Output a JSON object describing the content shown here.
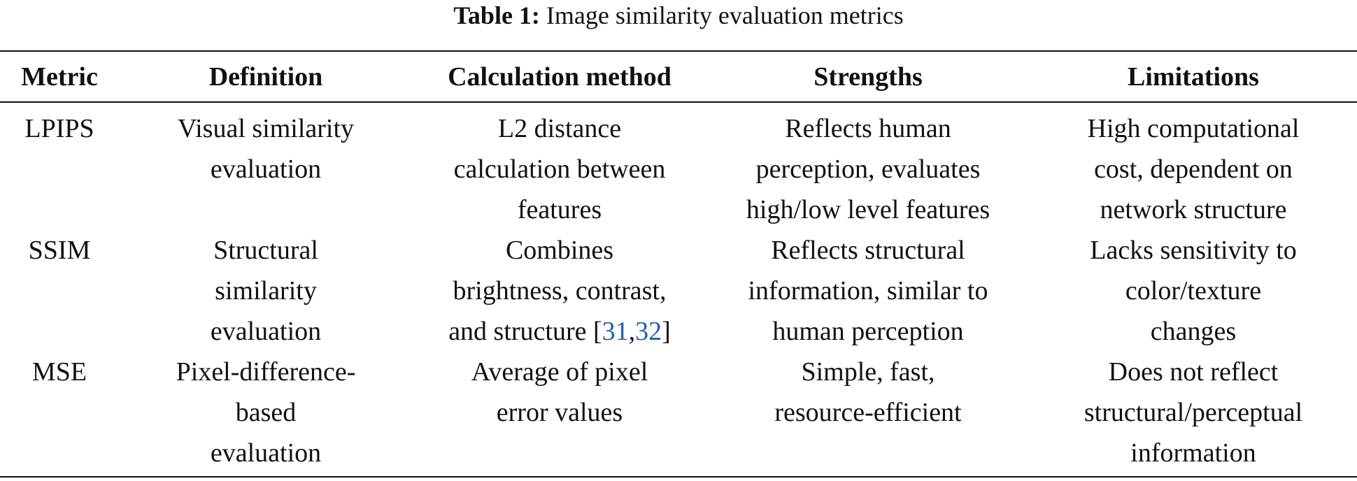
{
  "caption": {
    "label": "Table 1:",
    "text": "Image similarity evaluation metrics"
  },
  "table": {
    "headers": [
      "Metric",
      "Definition",
      "Calculation method",
      "Strengths",
      "Limitations"
    ],
    "rows": [
      {
        "metric": "LPIPS",
        "definition": [
          "Visual similarity",
          "evaluation"
        ],
        "calculation": [
          "L2 distance",
          "calculation between",
          "features"
        ],
        "strengths": [
          "Reflects human",
          "perception, evaluates",
          "high/low level features"
        ],
        "limitations": [
          "High computational",
          "cost, dependent on",
          "network structure"
        ]
      },
      {
        "metric": "SSIM",
        "definition": [
          "Structural",
          "similarity",
          "evaluation"
        ],
        "calculation": [
          "Combines",
          "brightness, contrast,",
          "and structure"
        ],
        "calculation_refs": {
          "open": "[",
          "ref1": "31",
          "sep": ",",
          "ref2": "32",
          "close": "]"
        },
        "strengths": [
          "Reflects structural",
          "information, similar to",
          "human perception"
        ],
        "limitations": [
          "Lacks sensitivity to",
          "color/texture",
          "changes"
        ]
      },
      {
        "metric": "MSE",
        "definition": [
          "Pixel-difference-",
          "based",
          "evaluation"
        ],
        "calculation": [
          "Average of pixel",
          "error values"
        ],
        "strengths": [
          "Simple, fast,",
          "resource-efficient"
        ],
        "limitations": [
          "Does not reflect",
          "structural/perceptual",
          "information"
        ]
      }
    ]
  },
  "colors": {
    "text": "#111111",
    "citation_link": "#1f5fae",
    "rules": "#111111"
  }
}
